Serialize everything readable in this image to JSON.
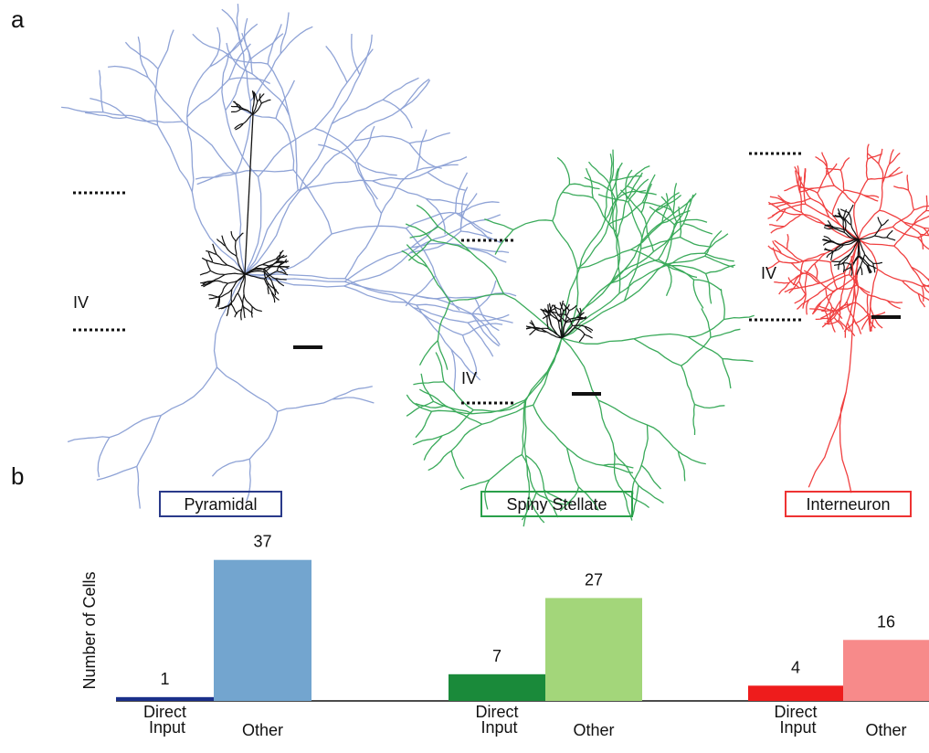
{
  "panel_a": {
    "label": "a",
    "layer_labels": [
      "IV",
      "IV",
      "IV"
    ]
  },
  "chart_data": {
    "type": "bar",
    "panel_label": "b",
    "ylabel": "Number of Cells",
    "groups": [
      {
        "name": "Pyramidal",
        "color": "#2a3a8a",
        "categories": [
          "Direct Input",
          "Other"
        ],
        "values": [
          1,
          37
        ],
        "colors": [
          "#1a2f8a",
          "#73a5cf"
        ]
      },
      {
        "name": "Spiny Stellate",
        "color": "#2aa04a",
        "categories": [
          "Direct Input",
          "Other"
        ],
        "values": [
          7,
          27
        ],
        "colors": [
          "#1a8a3a",
          "#a3d67a"
        ]
      },
      {
        "name": "Interneuron",
        "color": "#ee3333",
        "categories": [
          "Direct Input",
          "Other"
        ],
        "values": [
          4,
          16
        ],
        "colors": [
          "#ee1c1c",
          "#f78a8a"
        ]
      }
    ]
  }
}
